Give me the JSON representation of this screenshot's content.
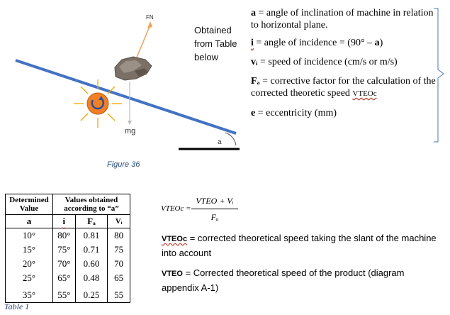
{
  "diagram": {
    "fn_label": "FN",
    "mg_label": "mg",
    "angle_label": "a",
    "figure_caption": "Figure 36"
  },
  "obtained": {
    "line1": "Obtained",
    "line2": "from Table",
    "line3": "below"
  },
  "definitions": {
    "a_sym": "a",
    "a_text": " = angle of inclination of machine in relation to horizontal plane.",
    "i_sym": "i",
    "i_text": " = angle of incidence = (90° – ",
    "i_text_a": "a",
    "i_text_end": ")",
    "vi_sym": "vᵢ",
    "vi_text": " = speed of incidence (cm/s or m/s)",
    "fa_sym": "Fₐ",
    "fa_text": " = corrective factor for the calculation of the corrected theoretic speed ",
    "fa_vteo": "VTEOc",
    "e_sym": "e",
    "e_text": " = eccentricity (mm)"
  },
  "table": {
    "col1_header": "Determined Value",
    "col2_header": "Values obtained according to “a”",
    "sub_a": "a",
    "sub_i": "i",
    "sub_fa": "Fₐ",
    "sub_vi": "Vᵢ",
    "rows": [
      {
        "a": "10°",
        "i": "80°",
        "fa": "0.81",
        "vi": "80"
      },
      {
        "a": "15°",
        "i": "75°",
        "fa": "0.71",
        "vi": "75"
      },
      {
        "a": "20°",
        "i": "70°",
        "fa": "0.60",
        "vi": "70"
      },
      {
        "a": "25°",
        "i": "65°",
        "fa": "0.48",
        "vi": "65"
      },
      {
        "a": "35°",
        "i": "55°",
        "fa": "0.25",
        "vi": "55"
      }
    ],
    "caption": "Table 1"
  },
  "formula": {
    "lhs": "VTEOc =",
    "numerator": "VTEO + Vᵢ",
    "denominator": "Fₐ"
  },
  "descriptions": {
    "vteoc_label": "VTEOc",
    "vteoc_text": " = corrected theoretical speed taking the slant of the machine into account",
    "vteo_label": "VTEO",
    "vteo_text": " = Corrected theoretical speed of the product (diagram appendix A-1)"
  }
}
